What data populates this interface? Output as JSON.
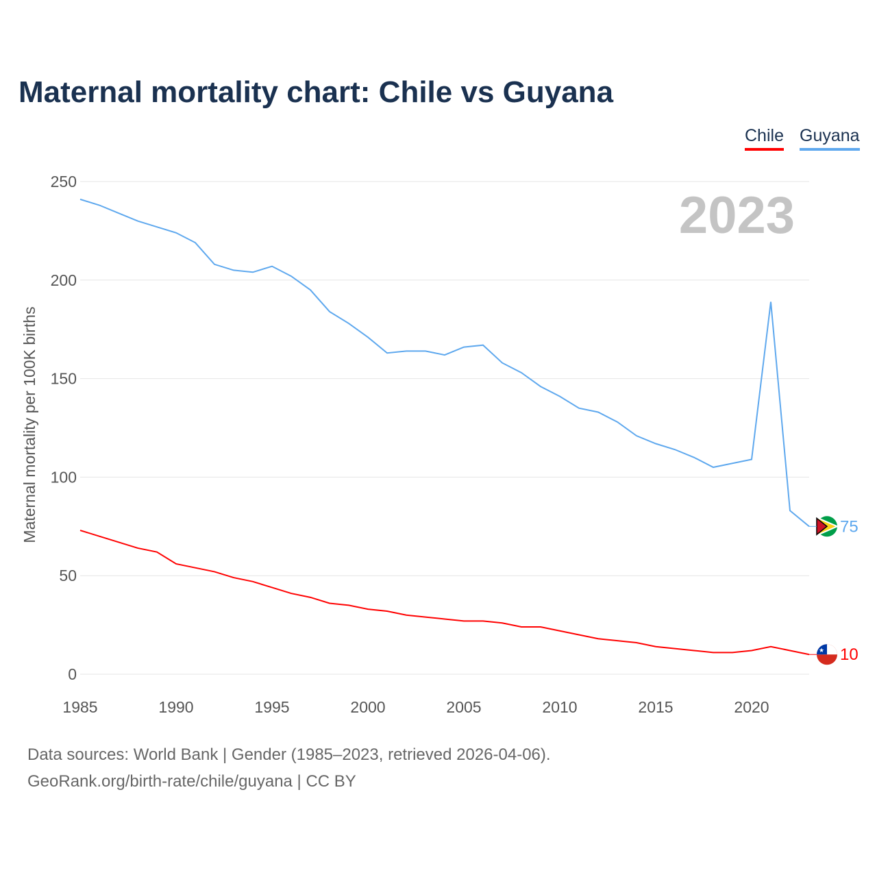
{
  "title": "Maternal mortality chart: Chile vs Guyana",
  "year_label": "2023",
  "source_line1": "Data sources: World Bank | Gender (1985–2023, retrieved 2026-04-06).",
  "source_line2": "GeoRank.org/birth-rate/chile/guyana | CC BY",
  "chart_data": {
    "type": "line",
    "title": "Maternal mortality chart: Chile vs Guyana",
    "xlabel": "",
    "ylabel": "Maternal mortality per 100K births",
    "xlim": [
      1985,
      2023
    ],
    "ylim": [
      0,
      250
    ],
    "xticks": [
      "1985",
      "1990",
      "1995",
      "2000",
      "2005",
      "2010",
      "2015",
      "2020"
    ],
    "yticks": [
      "0",
      "50",
      "100",
      "150",
      "200",
      "250"
    ],
    "grid": true,
    "legend_position": "top-right",
    "x": [
      1985,
      1986,
      1987,
      1988,
      1989,
      1990,
      1991,
      1992,
      1993,
      1994,
      1995,
      1996,
      1997,
      1998,
      1999,
      2000,
      2001,
      2002,
      2003,
      2004,
      2005,
      2006,
      2007,
      2008,
      2009,
      2010,
      2011,
      2012,
      2013,
      2014,
      2015,
      2016,
      2017,
      2018,
      2019,
      2020,
      2021,
      2022,
      2023
    ],
    "series": [
      {
        "name": "Chile",
        "color": "#ff0000",
        "end_label": "10",
        "values": [
          73,
          70,
          67,
          64,
          62,
          56,
          54,
          52,
          49,
          47,
          44,
          41,
          39,
          36,
          35,
          33,
          32,
          30,
          29,
          28,
          27,
          27,
          26,
          24,
          24,
          22,
          20,
          18,
          17,
          16,
          14,
          13,
          12,
          11,
          11,
          12,
          14,
          12,
          10
        ]
      },
      {
        "name": "Guyana",
        "color": "#5ea8ee",
        "end_label": "75",
        "values": [
          241,
          238,
          234,
          230,
          227,
          224,
          219,
          208,
          205,
          204,
          207,
          202,
          195,
          184,
          178,
          171,
          163,
          164,
          164,
          162,
          166,
          167,
          158,
          153,
          146,
          141,
          135,
          133,
          128,
          121,
          117,
          114,
          110,
          105,
          107,
          109,
          189,
          83,
          75
        ]
      }
    ]
  }
}
